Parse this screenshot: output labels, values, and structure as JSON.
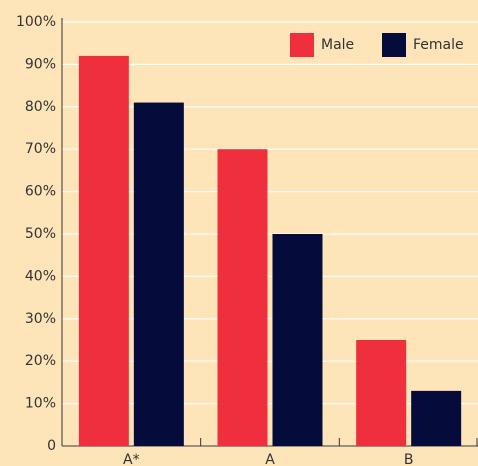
{
  "chart_data": {
    "type": "bar",
    "categories": [
      "A*",
      "A",
      "B"
    ],
    "series": [
      {
        "name": "Male",
        "color": "#ef2f3e",
        "values": [
          92,
          70,
          25
        ]
      },
      {
        "name": "Female",
        "color": "#050b3b",
        "values": [
          81,
          50,
          13
        ]
      }
    ],
    "ylim": [
      0,
      100
    ],
    "yticks": [
      0,
      {
        "value": 10,
        "label": "10%"
      },
      {
        "value": 20,
        "label": "20%"
      },
      {
        "value": 30,
        "label": "30%"
      },
      {
        "value": 40,
        "label": "40%"
      },
      {
        "value": 50,
        "label": "50%"
      },
      {
        "value": 60,
        "label": "60%"
      },
      {
        "value": 70,
        "label": "70%"
      },
      {
        "value": 80,
        "label": "80%"
      },
      {
        "value": 90,
        "label": "90%"
      },
      {
        "value": 100,
        "label": "100%"
      }
    ],
    "grid": true,
    "legend": "top-right"
  }
}
